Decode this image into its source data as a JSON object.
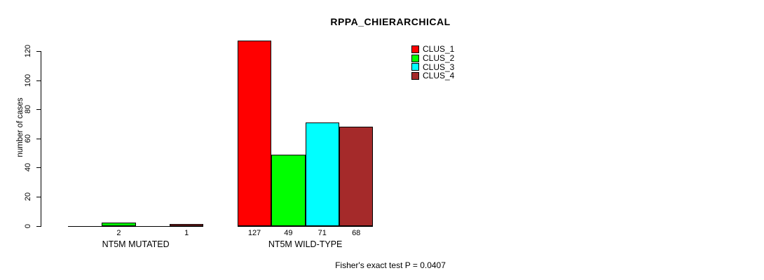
{
  "title": "RPPA_CHIERARCHICAL",
  "footer": "Fisher's exact test P = 0.0407",
  "chart_data": {
    "type": "bar",
    "title": "RPPA_CHIERARCHICAL",
    "xlabel": "",
    "ylabel": "number of cases",
    "ylim": [
      0,
      120
    ],
    "yticks": [
      0,
      20,
      40,
      60,
      80,
      100,
      120
    ],
    "grid": false,
    "legend_position": "top-right",
    "categories": [
      "NT5M MUTATED",
      "NT5M WILD-TYPE"
    ],
    "series": [
      {
        "name": "CLUS_1",
        "color": "#ff0000",
        "values": [
          0,
          127
        ]
      },
      {
        "name": "CLUS_2",
        "color": "#00ff00",
        "values": [
          2,
          49
        ]
      },
      {
        "name": "CLUS_3",
        "color": "#00ffff",
        "values": [
          0,
          71
        ]
      },
      {
        "name": "CLUS_4",
        "color": "#a52a2a",
        "values": [
          1,
          68
        ]
      }
    ],
    "bar_value_labels_shown_when_positive": true,
    "annotation": "Fisher's exact test P = 0.0407"
  }
}
